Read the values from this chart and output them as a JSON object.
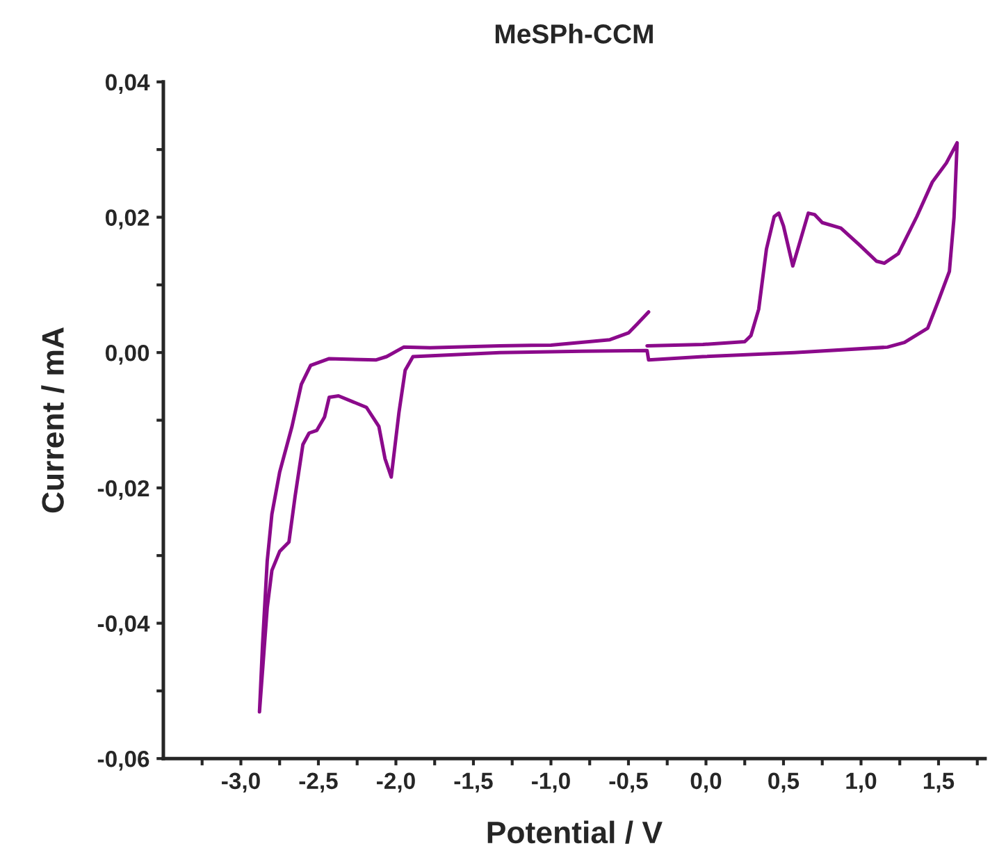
{
  "chart_data": {
    "type": "line",
    "title": "MeSPh-CCM",
    "xlabel": "Potential / V",
    "ylabel": "Current / mA",
    "series": [
      {
        "color": "#8b0a8b",
        "x": [
          -0.38,
          -0.2,
          -0.02,
          0.25,
          0.29,
          0.34,
          0.39,
          0.44,
          0.47,
          0.5,
          0.56,
          0.6,
          0.66,
          0.7,
          0.75,
          0.87,
          0.99,
          1.1,
          1.15,
          1.24,
          1.36,
          1.46,
          1.55,
          1.62,
          1.6,
          1.57,
          1.5,
          1.43,
          1.28,
          1.17,
          0.57,
          -0.02,
          -0.37,
          -0.38,
          -0.8,
          -1.33,
          -1.89,
          -1.94,
          -1.98,
          -2.03,
          -2.07,
          -2.11,
          -2.19,
          -2.37,
          -2.43,
          -2.46,
          -2.51,
          -2.56,
          -2.6,
          -2.65,
          -2.69,
          -2.75,
          -2.8,
          -2.83,
          -2.88,
          -2.86,
          -2.83,
          -2.8,
          -2.75,
          -2.67,
          -2.61,
          -2.55,
          -2.43,
          -2.13,
          -2.06,
          -1.95,
          -1.78,
          -1.33,
          -1.0,
          -0.62,
          -0.5,
          -0.44,
          -0.37
        ],
        "values": [
          0.001,
          0.0011,
          0.0012,
          0.0016,
          0.0025,
          0.0064,
          0.0153,
          0.0201,
          0.0206,
          0.0187,
          0.0128,
          0.0159,
          0.0206,
          0.0204,
          0.0192,
          0.0184,
          0.0159,
          0.0135,
          0.0132,
          0.0146,
          0.0201,
          0.0252,
          0.028,
          0.031,
          0.02,
          0.012,
          0.0077,
          0.0036,
          0.0015,
          0.0008,
          0.0,
          -0.0006,
          -0.0011,
          0.0003,
          0.0002,
          0.0,
          -0.0006,
          -0.0026,
          -0.0088,
          -0.0184,
          -0.0157,
          -0.0109,
          -0.0081,
          -0.0064,
          -0.0066,
          -0.0095,
          -0.0115,
          -0.0119,
          -0.0136,
          -0.0212,
          -0.028,
          -0.0294,
          -0.0322,
          -0.0377,
          -0.0531,
          -0.0431,
          -0.0308,
          -0.0239,
          -0.0177,
          -0.0109,
          -0.0047,
          -0.0019,
          -0.0009,
          -0.0011,
          -0.0006,
          0.0008,
          0.0007,
          0.001,
          0.0011,
          0.0019,
          0.0029,
          0.0043,
          0.006
        ]
      }
    ],
    "xlim": [
      -3.5,
      1.8
    ],
    "ylim": [
      -0.06,
      0.04
    ],
    "xticks": [
      {
        "value": -3.25,
        "label": null
      },
      {
        "value": -3.0,
        "label": "-3,0"
      },
      {
        "value": -2.75,
        "label": null
      },
      {
        "value": -2.5,
        "label": "-2,5"
      },
      {
        "value": -2.25,
        "label": null
      },
      {
        "value": -2.0,
        "label": "-2,0"
      },
      {
        "value": -1.75,
        "label": null
      },
      {
        "value": -1.5,
        "label": "-1,5"
      },
      {
        "value": -1.25,
        "label": null
      },
      {
        "value": -1.0,
        "label": "-1,0"
      },
      {
        "value": -0.75,
        "label": null
      },
      {
        "value": -0.5,
        "label": "-0,5"
      },
      {
        "value": -0.25,
        "label": null
      },
      {
        "value": 0.0,
        "label": "0,0"
      },
      {
        "value": 0.25,
        "label": null
      },
      {
        "value": 0.5,
        "label": "0,5"
      },
      {
        "value": 0.75,
        "label": null
      },
      {
        "value": 1.0,
        "label": "1,0"
      },
      {
        "value": 1.25,
        "label": null
      },
      {
        "value": 1.5,
        "label": "1,5"
      },
      {
        "value": 1.75,
        "label": null
      }
    ],
    "yticks": [
      {
        "value": -0.06,
        "label": "-0,06"
      },
      {
        "value": -0.05,
        "label": null
      },
      {
        "value": -0.04,
        "label": "-0,04"
      },
      {
        "value": -0.03,
        "label": null
      },
      {
        "value": -0.02,
        "label": "-0,02"
      },
      {
        "value": -0.01,
        "label": null
      },
      {
        "value": 0.0,
        "label": "0,00"
      },
      {
        "value": 0.01,
        "label": null
      },
      {
        "value": 0.02,
        "label": "0,02"
      },
      {
        "value": 0.03,
        "label": null
      },
      {
        "value": 0.04,
        "label": "0,04"
      }
    ],
    "grid": false,
    "legend": false,
    "marker": "none",
    "line_style": "solid"
  }
}
